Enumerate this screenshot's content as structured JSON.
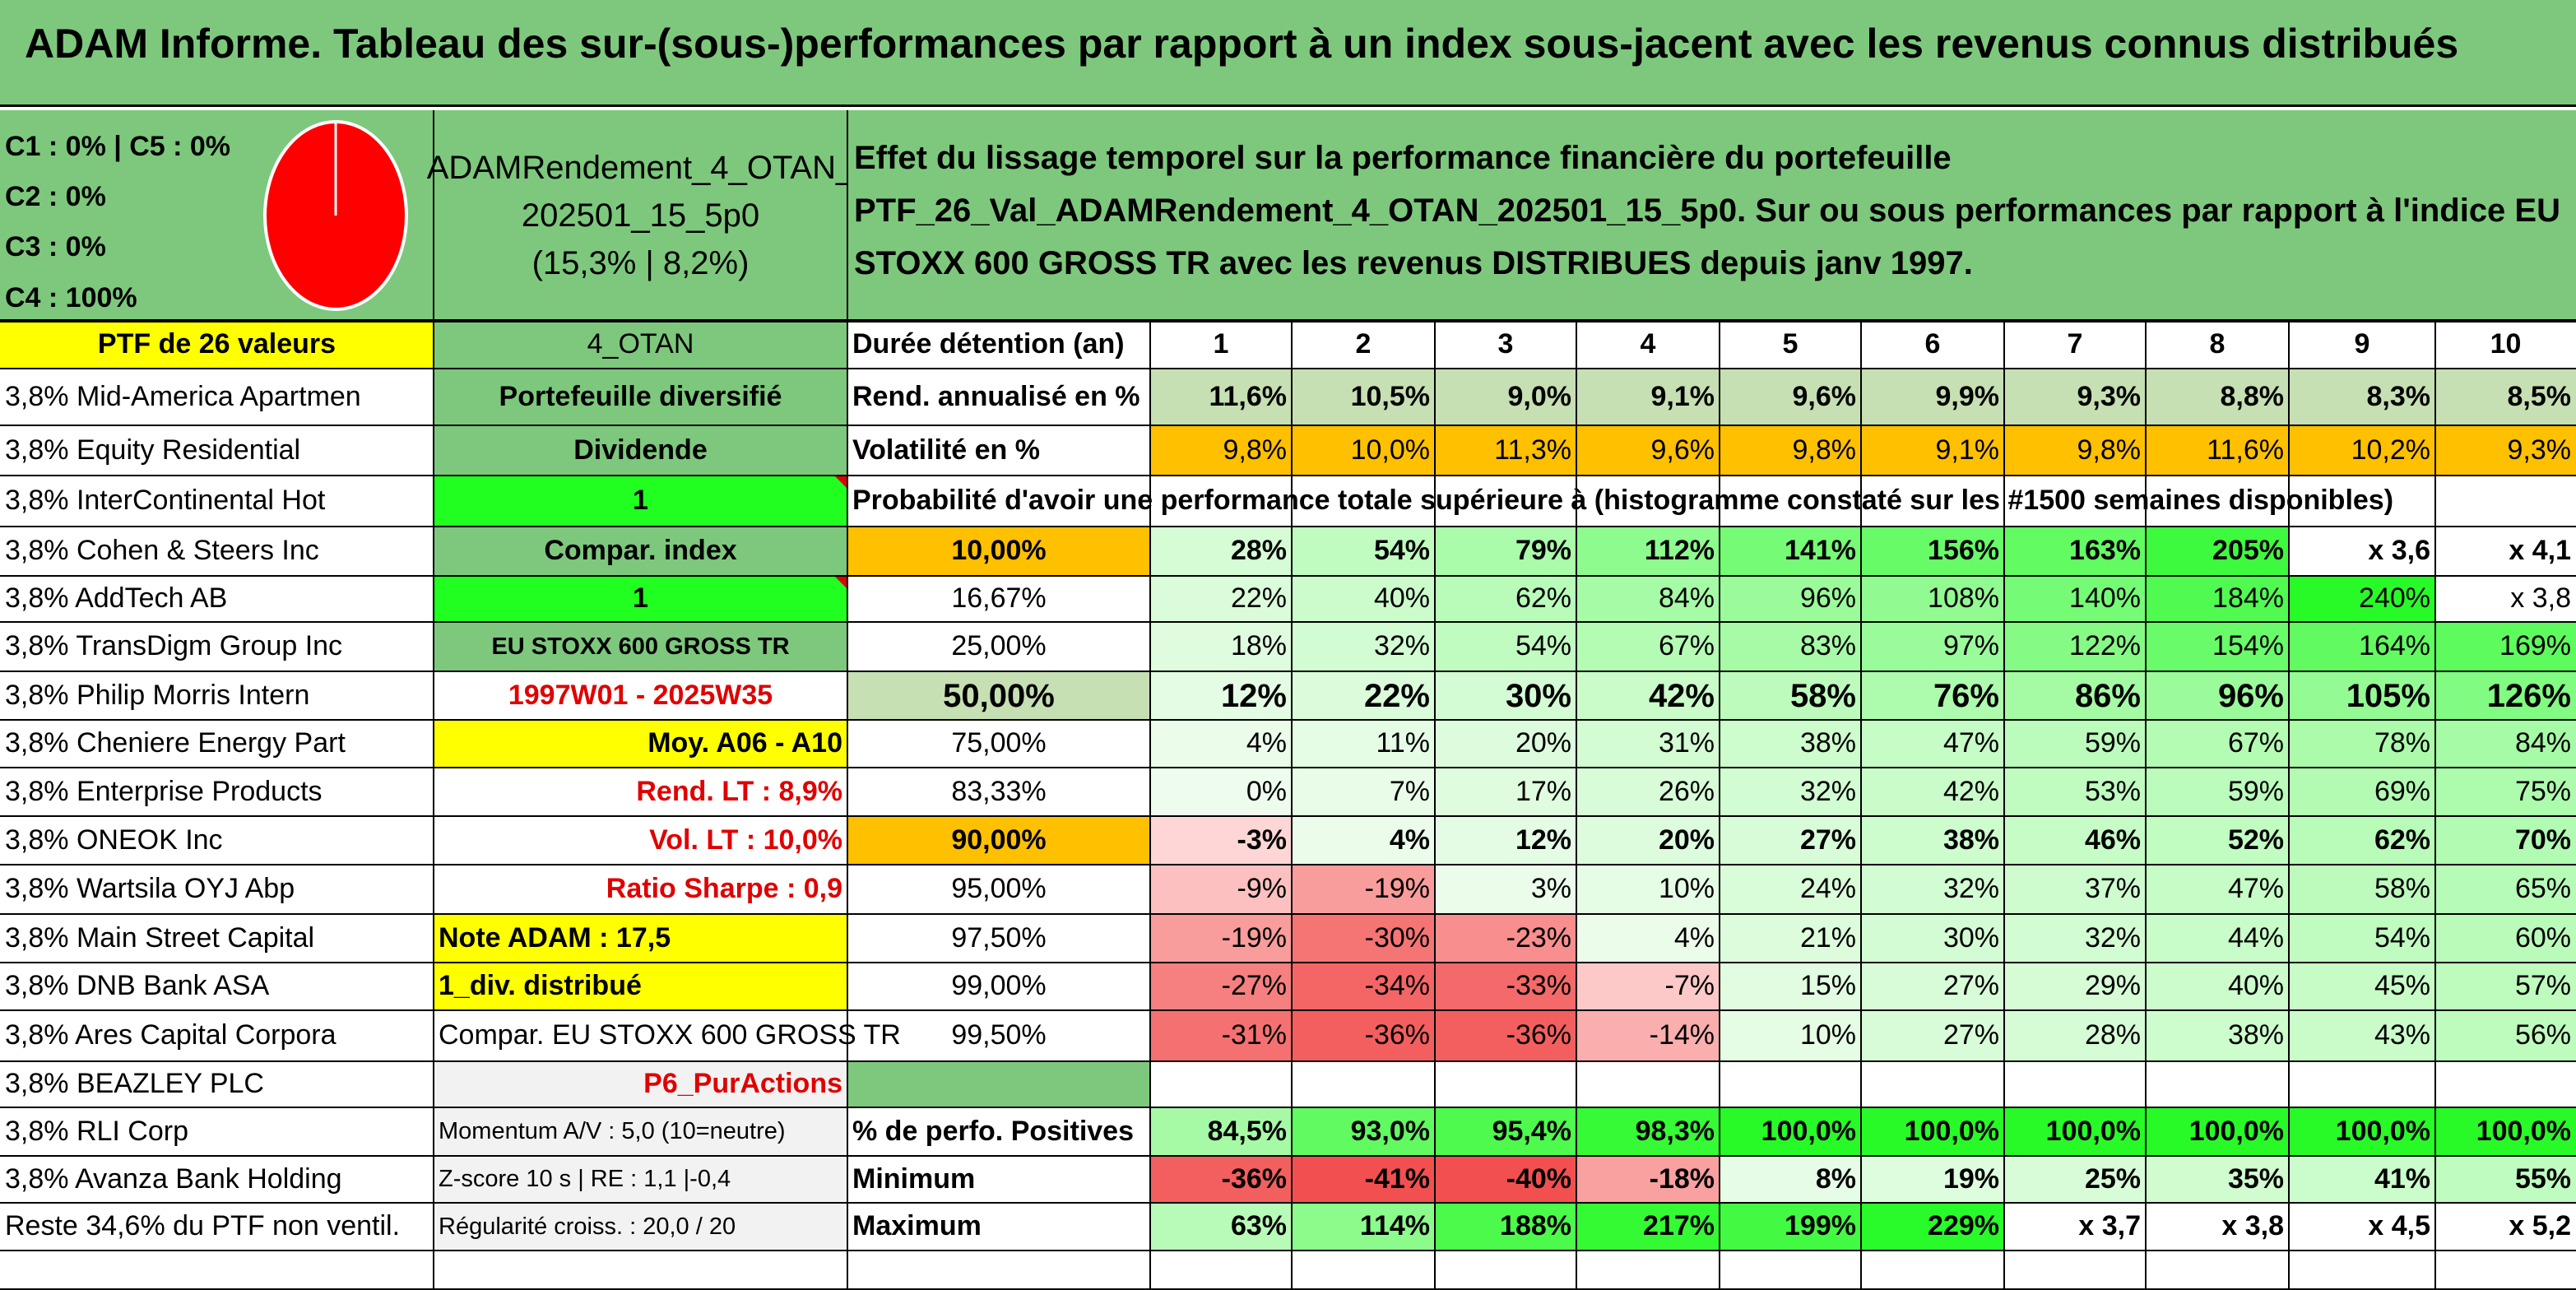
{
  "title": "ADAM Informe. Tableau des sur-(sous-)performances par rapport à un index sous-jacent avec les revenus connus distribués",
  "legend": {
    "c1c5": "C1 : 0% | C5 : 0%",
    "c2": "C2 : 0%",
    "c3": "C3 : 0%",
    "c4": "C4 : 100%"
  },
  "pie": {
    "slices": [
      {
        "label": "C4",
        "value": 100,
        "color": "#ff0000"
      }
    ]
  },
  "portfolio": {
    "name_l1": "ADAMRendement_4_OTAN_",
    "name_l2": "202501_15_5p0",
    "name_l3": "(15,3% | 8,2%)"
  },
  "description": "Effet du lissage temporel sur la performance financière du portefeuille PTF_26_Val_ADAMRendement_4_OTAN_202501_15_5p0. Sur ou sous performances par rapport à l'indice EU STOXX 600 GROSS TR avec les revenus DISTRIBUES depuis janv 1997.",
  "ptf_header": "PTF de 26 valeurs",
  "holdings": [
    "3,8% Mid-America Apartmen",
    "3,8% Equity Residential",
    "3,8% InterContinental Hot",
    "3,8% Cohen & Steers Inc",
    "3,8% AddTech AB",
    "3,8% TransDigm Group Inc",
    "3,8% Philip Morris Intern",
    "3,8% Cheniere Energy Part",
    "3,8% Enterprise Products",
    "3,8% ONEOK Inc",
    "3,8% Wartsila OYJ Abp",
    "3,8% Main Street Capital",
    "3,8% DNB Bank ASA",
    "3,8% Ares Capital Corpora",
    "3,8% BEAZLEY PLC",
    "3,8% RLI Corp",
    "3,8% Avanza Bank Holding",
    "Reste 34,6% du PTF non ventil."
  ],
  "info": [
    "4_OTAN",
    "Portefeuille diversifié",
    "Dividende",
    "1",
    "Compar. index",
    "1",
    "EU STOXX 600 GROSS TR",
    "1997W01 - 2025W35",
    "Moy. A06 - A10",
    "Rend. LT : 8,9%",
    "Vol. LT : 10,0%",
    "Ratio Sharpe : 0,9",
    "Note ADAM : 17,5",
    "1_div. distribué",
    "Compar. EU STOXX 600 GROSS TR",
    "P6_PurActions",
    "Momentum A/V : 5,0 (10=neutre)",
    "Z-score 10 s | RE : 1,1 |-0,4",
    "Régularité croiss. : 20,0 / 20"
  ],
  "table": {
    "duration_label": "Durée détention (an)",
    "years": [
      "1",
      "2",
      "3",
      "4",
      "5",
      "6",
      "7",
      "8",
      "9",
      "10"
    ],
    "rend_label": "Rend. annualisé en %",
    "rend": [
      "11,6%",
      "10,5%",
      "9,0%",
      "9,1%",
      "9,6%",
      "9,9%",
      "9,3%",
      "8,8%",
      "8,3%",
      "8,5%"
    ],
    "vol_label": "Volatilité en %",
    "vol": [
      "9,8%",
      "10,0%",
      "11,3%",
      "9,6%",
      "9,8%",
      "9,1%",
      "9,8%",
      "11,6%",
      "10,2%",
      "9,3%"
    ],
    "prob_header": "Probabilité d'avoir une performance totale supérieure à (histogramme constaté sur les #1500 semaines disponibles)",
    "prob_rows": [
      {
        "p": "10,00%",
        "v": [
          "28%",
          "54%",
          "79%",
          "112%",
          "141%",
          "156%",
          "163%",
          "205%",
          "x 3,6",
          "x 4,1"
        ]
      },
      {
        "p": "16,67%",
        "v": [
          "22%",
          "40%",
          "62%",
          "84%",
          "96%",
          "108%",
          "140%",
          "184%",
          "240%",
          "x 3,8"
        ]
      },
      {
        "p": "25,00%",
        "v": [
          "18%",
          "32%",
          "54%",
          "67%",
          "83%",
          "97%",
          "122%",
          "154%",
          "164%",
          "169%"
        ]
      },
      {
        "p": "50,00%",
        "v": [
          "12%",
          "22%",
          "30%",
          "42%",
          "58%",
          "76%",
          "86%",
          "96%",
          "105%",
          "126%"
        ]
      },
      {
        "p": "75,00%",
        "v": [
          "4%",
          "11%",
          "20%",
          "31%",
          "38%",
          "47%",
          "59%",
          "67%",
          "78%",
          "84%"
        ]
      },
      {
        "p": "83,33%",
        "v": [
          "0%",
          "7%",
          "17%",
          "26%",
          "32%",
          "42%",
          "53%",
          "59%",
          "69%",
          "75%"
        ]
      },
      {
        "p": "90,00%",
        "v": [
          "-3%",
          "4%",
          "12%",
          "20%",
          "27%",
          "38%",
          "46%",
          "52%",
          "62%",
          "70%"
        ]
      },
      {
        "p": "95,00%",
        "v": [
          "-9%",
          "-19%",
          "3%",
          "10%",
          "24%",
          "32%",
          "37%",
          "47%",
          "58%",
          "65%"
        ]
      },
      {
        "p": "97,50%",
        "v": [
          "-19%",
          "-30%",
          "-23%",
          "4%",
          "21%",
          "30%",
          "32%",
          "44%",
          "54%",
          "60%"
        ]
      },
      {
        "p": "99,00%",
        "v": [
          "-27%",
          "-34%",
          "-33%",
          "-7%",
          "15%",
          "27%",
          "29%",
          "40%",
          "45%",
          "57%"
        ]
      },
      {
        "p": "99,50%",
        "v": [
          "-31%",
          "-36%",
          "-36%",
          "-14%",
          "10%",
          "27%",
          "28%",
          "38%",
          "43%",
          "56%"
        ]
      }
    ],
    "pos_label": "% de perfo. Positives",
    "pos": [
      "84,5%",
      "93,0%",
      "95,4%",
      "98,3%",
      "100,0%",
      "100,0%",
      "100,0%",
      "100,0%",
      "100,0%",
      "100,0%"
    ],
    "min_label": "Minimum",
    "min": [
      "-36%",
      "-41%",
      "-40%",
      "-18%",
      "8%",
      "19%",
      "25%",
      "35%",
      "41%",
      "55%"
    ],
    "max_label": "Maximum",
    "max": [
      "63%",
      "114%",
      "188%",
      "217%",
      "199%",
      "229%",
      "x 3,7",
      "x 3,8",
      "x 4,5",
      "x 5,2"
    ]
  },
  "colors": {
    "title_bg": "#7ec87e",
    "green_cell": "#7dc87d",
    "bright_green": "#21ff21",
    "yellow": "#ffff00",
    "orange": "#ffc000",
    "red_text": "#e00000"
  }
}
